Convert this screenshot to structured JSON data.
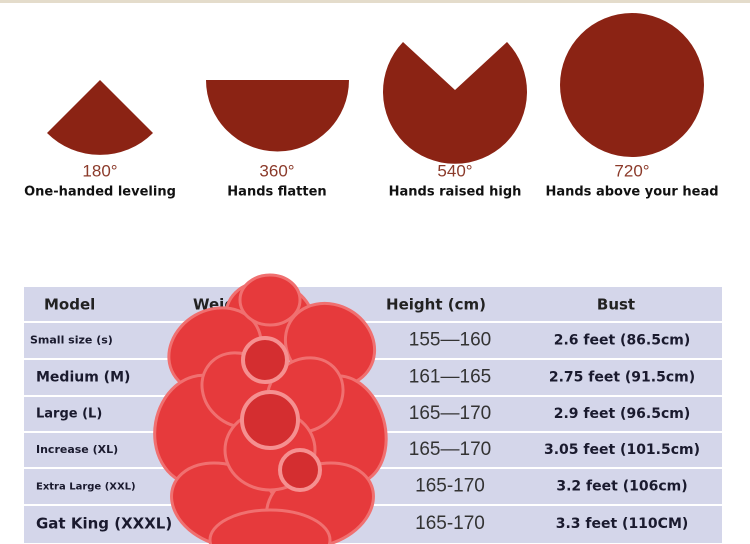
{
  "shapes": [
    {
      "degree": "180°",
      "caption": "One-handed leveling"
    },
    {
      "degree": "360°",
      "caption": "Hands flatten"
    },
    {
      "degree": "540°",
      "caption": "Hands raised high"
    },
    {
      "degree": "720°",
      "caption": "Hands above your head"
    }
  ],
  "table": {
    "headers": [
      "Model",
      "Weight",
      "Height (cm)",
      "Bust"
    ],
    "rows": [
      {
        "model": "Small size (s)",
        "height": "155—160",
        "bust": "2.6 feet (86.5cm)"
      },
      {
        "model": "Medium (M)",
        "height": "161—165",
        "bust": "2.75 feet (91.5cm)"
      },
      {
        "model": "Large (L)",
        "height": "165—170",
        "bust": "2.9 feet (96.5cm)"
      },
      {
        "model": "Increase (XL)",
        "height": "165—170",
        "bust": "3.05 feet (101.5cm)"
      },
      {
        "model": "Extra Large (XXL)",
        "height": "165-170",
        "bust": "3.2 feet (106cm)"
      },
      {
        "model": "Gat King (XXXL)",
        "height": "165-170",
        "bust": "3.3 feet (110CM)"
      }
    ]
  }
}
